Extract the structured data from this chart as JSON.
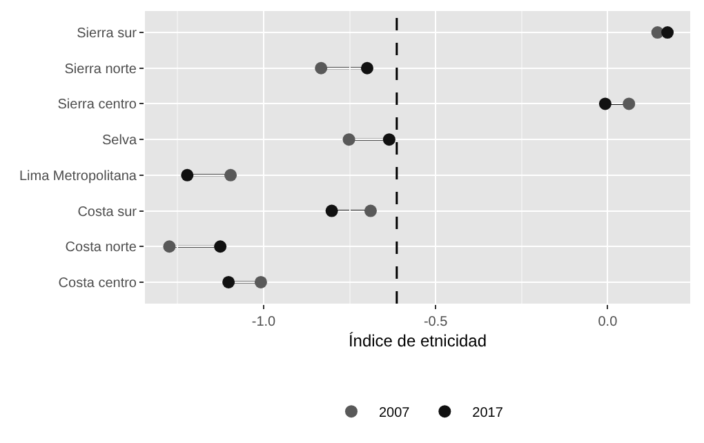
{
  "chart_data": {
    "type": "scatter",
    "orientation": "horizontal",
    "xlabel": "Índice de etnicidad",
    "categories": [
      "Sierra sur",
      "Sierra norte",
      "Sierra centro",
      "Selva",
      "Lima Metropolitana",
      "Costa sur",
      "Costa norte",
      "Costa centro"
    ],
    "series": [
      {
        "name": "2007",
        "color": "#595959",
        "values": [
          0.145,
          -0.833,
          0.062,
          -0.752,
          -1.096,
          -0.689,
          -1.274,
          -1.008
        ]
      },
      {
        "name": "2017",
        "color": "#111111",
        "values": [
          0.174,
          -0.699,
          -0.007,
          -0.635,
          -1.222,
          -0.802,
          -1.126,
          -1.102
        ]
      }
    ],
    "xlim": [
      -1.345,
      0.24
    ],
    "xticks": [
      {
        "value": -1,
        "label": "-1.0"
      },
      {
        "value": -0.5,
        "label": "-0.5"
      },
      {
        "value": 0,
        "label": "0.0"
      }
    ],
    "ref_lines": [
      {
        "axis": "x",
        "value": -0.613,
        "color": "#000000",
        "line_style": "dashed"
      }
    ],
    "grid": true,
    "legend": "bottom",
    "marker": "circle"
  }
}
